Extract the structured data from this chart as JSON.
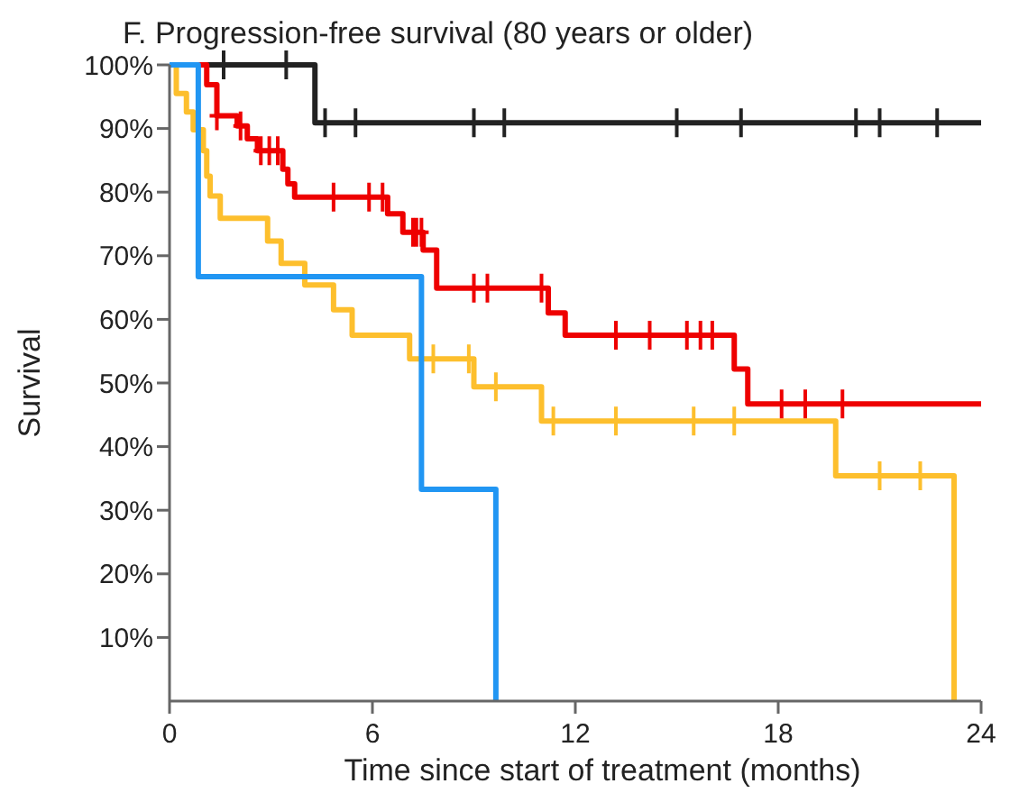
{
  "chart_data": {
    "type": "step",
    "title": "F. Progression-free survival (80 years or older)",
    "xlabel": "Time since start of treatment (months)",
    "ylabel": "Survival",
    "xlim": [
      0,
      24
    ],
    "xticks": [
      0,
      6,
      12,
      18,
      24
    ],
    "ylim": [
      0,
      100
    ],
    "yticks": [
      {
        "value": 10,
        "label": "10%"
      },
      {
        "value": 20,
        "label": "20%"
      },
      {
        "value": 30,
        "label": "30%"
      },
      {
        "value": 40,
        "label": "40%"
      },
      {
        "value": 50,
        "label": "50%"
      },
      {
        "value": 60,
        "label": "60%"
      },
      {
        "value": 70,
        "label": "70%"
      },
      {
        "value": 80,
        "label": "80%"
      },
      {
        "value": 90,
        "label": "90%"
      },
      {
        "value": 100,
        "label": "100%"
      }
    ],
    "grid": false,
    "series": [
      {
        "color": "#222222",
        "x": [
          0,
          4.3,
          24
        ],
        "values": [
          100,
          90.9,
          90.9
        ]
      },
      {
        "color": "#ee0000",
        "x": [
          0,
          1.1,
          1.4,
          2.0,
          2.3,
          2.6,
          3.35,
          3.5,
          3.7,
          6.45,
          6.9,
          7.5,
          7.9,
          11.2,
          11.7,
          16.7,
          17.1,
          24
        ],
        "values": [
          100,
          96.9,
          92,
          90.4,
          88.4,
          86.5,
          83.6,
          81.3,
          79.2,
          76.6,
          73.7,
          70.9,
          64.9,
          61,
          57.5,
          52.2,
          46.7,
          46.7
        ]
      },
      {
        "color": "#fdbf2d",
        "x": [
          0,
          0.2,
          0.5,
          0.7,
          1.0,
          1.1,
          1.2,
          1.5,
          2.9,
          3.3,
          4.0,
          4.85,
          5.4,
          7.1,
          9.0,
          11.0,
          19.7,
          23.2
        ],
        "values": [
          100,
          95.5,
          92.6,
          89.8,
          86.5,
          82.5,
          79.4,
          75.9,
          72.3,
          68.8,
          65.4,
          61.5,
          57.5,
          53.8,
          49.4,
          44,
          35.4,
          0
        ]
      },
      {
        "color": "#2196f3",
        "x": [
          0,
          0.85,
          7.45,
          9.65
        ],
        "values": [
          100,
          66.7,
          33.3,
          0
        ]
      },
      {
        "type": "scatter",
        "marker": "cross",
        "color": "#222222",
        "x": [
          1.6,
          3.45,
          4.6,
          5.5,
          9.0,
          9.9,
          15.0,
          16.9,
          20.3,
          21.0,
          22.7
        ],
        "values": [
          100,
          100,
          90.9,
          90.9,
          90.9,
          90.9,
          90.9,
          90.9,
          90.9,
          90.9,
          90.9
        ]
      },
      {
        "type": "scatter",
        "marker": "cross",
        "color": "#ee0000",
        "x": [
          1.4,
          2.1,
          2.7,
          2.95,
          3.2,
          4.85,
          5.9,
          6.3,
          7.2,
          7.3,
          7.45,
          9.0,
          9.4,
          11.0,
          13.2,
          14.2,
          15.3,
          15.7,
          16.05,
          18.1,
          18.8,
          19.9
        ],
        "values": [
          92,
          90.4,
          86.5,
          86.5,
          86.5,
          79.2,
          79.2,
          79.2,
          73.7,
          73.7,
          73.7,
          64.9,
          64.9,
          64.9,
          57.5,
          57.5,
          57.5,
          57.5,
          57.5,
          46.7,
          46.7,
          46.7
        ]
      },
      {
        "type": "scatter",
        "marker": "cross",
        "color": "#fdbf2d",
        "x": [
          7.8,
          8.85,
          9.65,
          11.35,
          13.2,
          15.5,
          16.7,
          21.0,
          22.2
        ],
        "values": [
          53.8,
          53.8,
          49.4,
          44,
          44,
          44,
          44,
          35.4,
          35.4
        ]
      }
    ]
  }
}
